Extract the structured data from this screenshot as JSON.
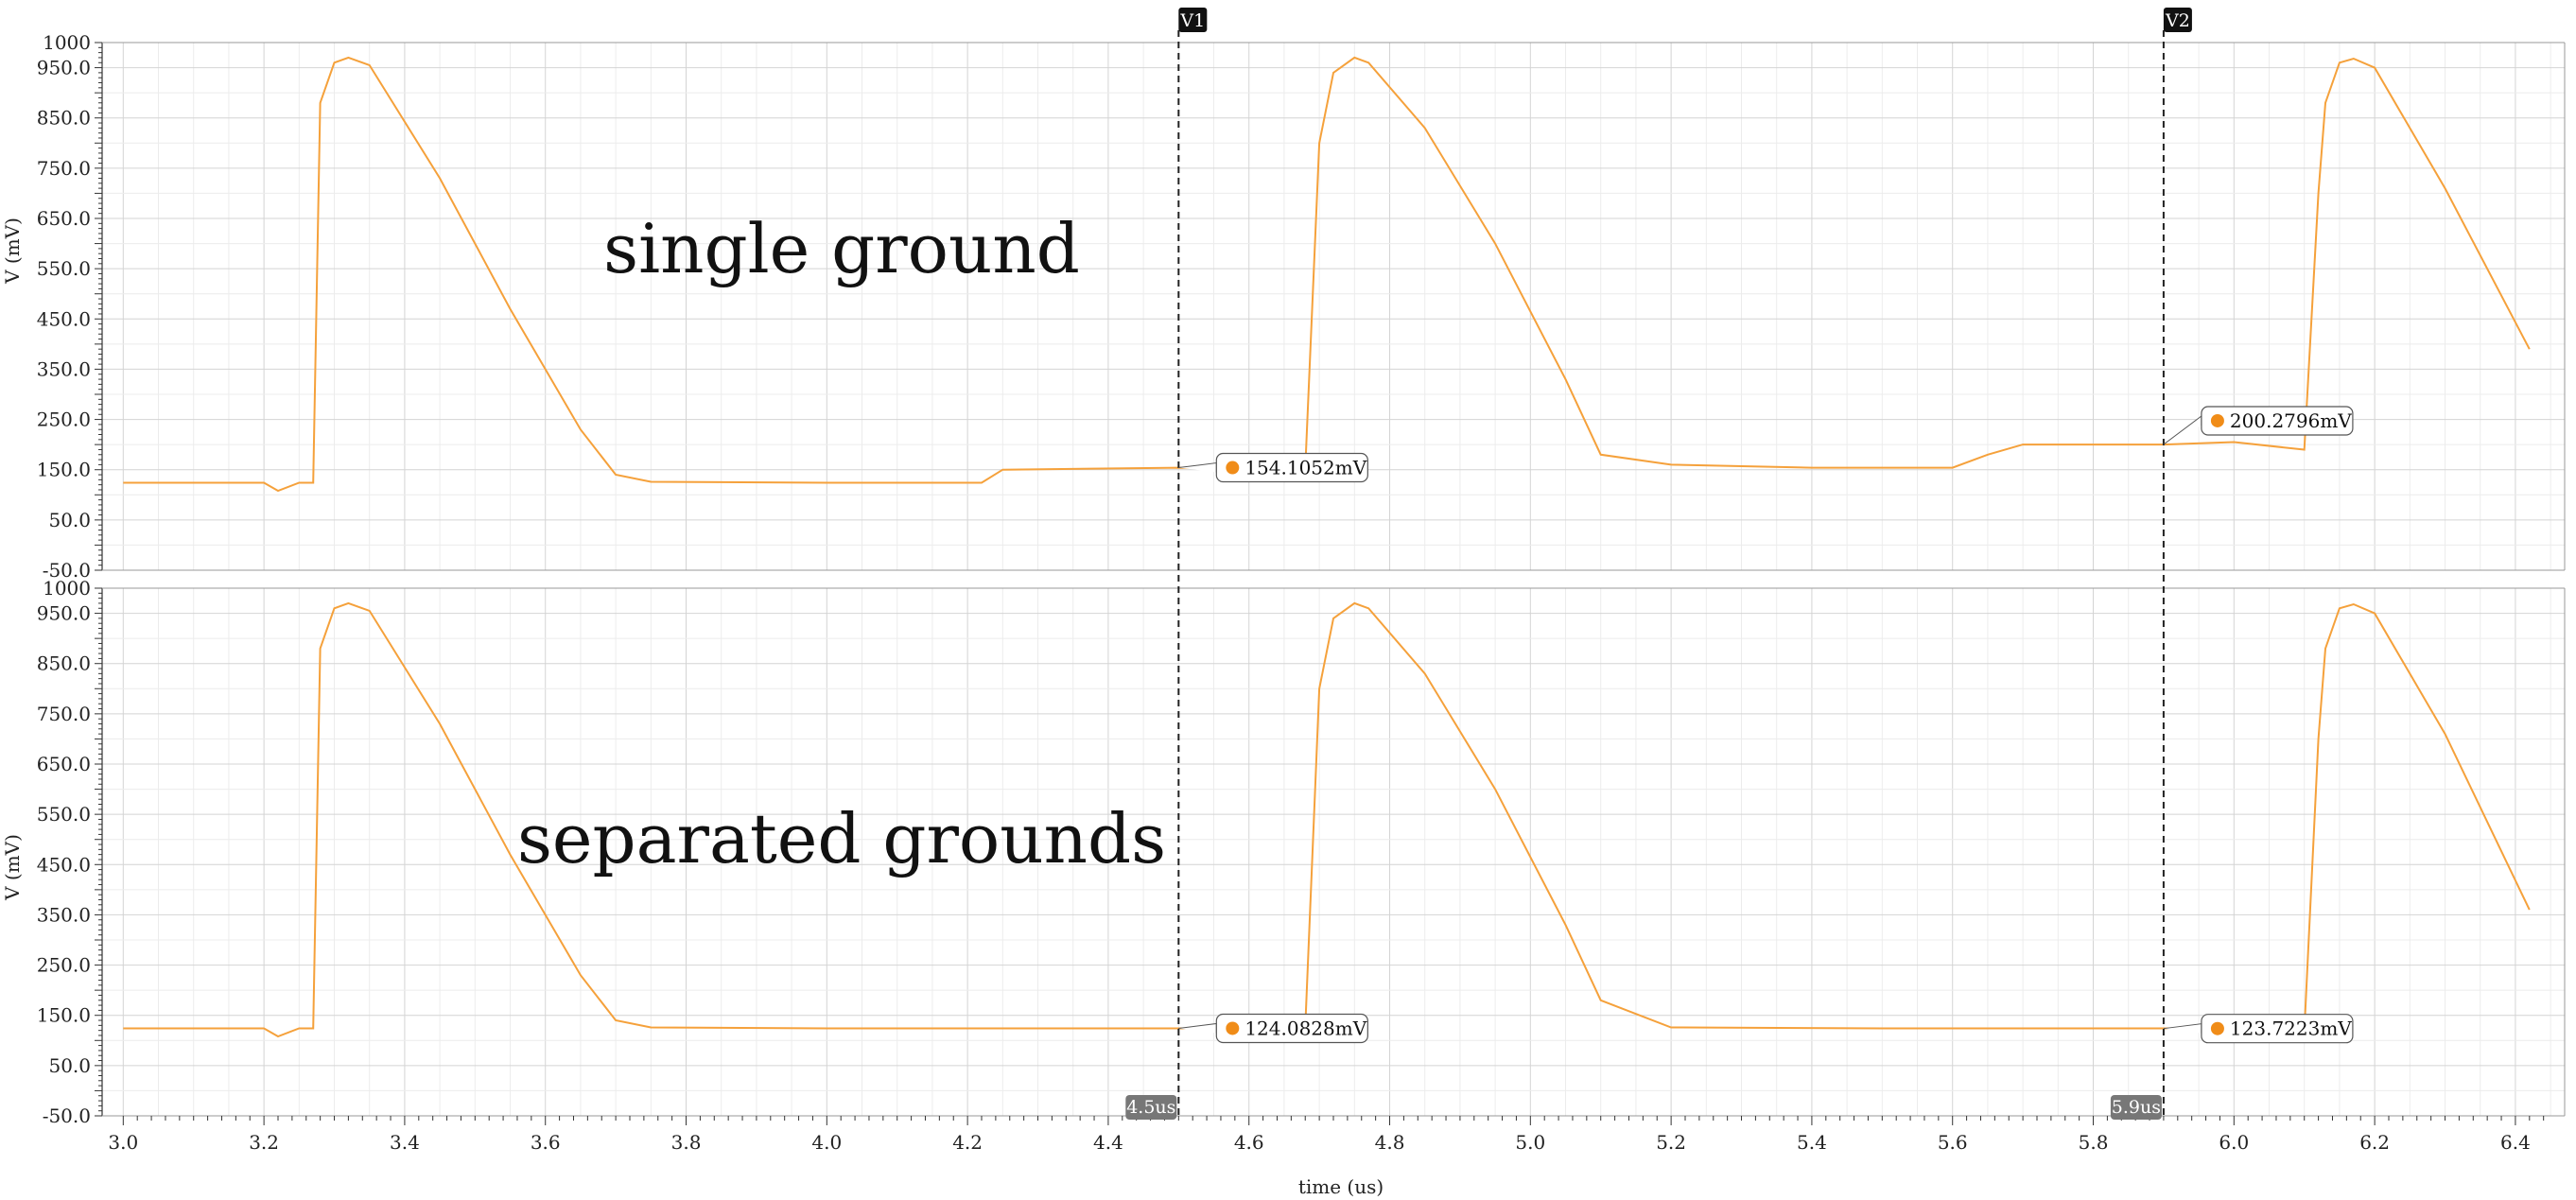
{
  "chart_data": [
    {
      "type": "line",
      "title": "",
      "annotation": "single ground",
      "xlabel": "",
      "ylabel": "V (mV)",
      "xlim": [
        2.97,
        6.47
      ],
      "ylim": [
        -50,
        1000
      ],
      "yticks": [
        "-50.0",
        "50.0",
        "150.0",
        "250.0",
        "350.0",
        "450.0",
        "550.0",
        "650.0",
        "750.0",
        "850.0",
        "950.0",
        "1000"
      ],
      "grid": true,
      "series": [
        {
          "color": "#f5a13b",
          "x": [
            3.0,
            3.2,
            3.22,
            3.25,
            3.27,
            3.28,
            3.3,
            3.32,
            3.35,
            3.45,
            3.55,
            3.65,
            3.7,
            3.75,
            4.0,
            4.22,
            4.25,
            4.5,
            4.6,
            4.68,
            4.7,
            4.72,
            4.75,
            4.77,
            4.85,
            4.95,
            5.05,
            5.1,
            5.2,
            5.4,
            5.6,
            5.65,
            5.7,
            5.9,
            6.0,
            6.1,
            6.12,
            6.13,
            6.15,
            6.17,
            6.2,
            6.3,
            6.42
          ],
          "y": [
            124,
            124,
            108,
            124,
            124,
            880,
            960,
            970,
            955,
            730,
            470,
            230,
            140,
            126,
            124,
            124,
            150,
            154,
            150,
            150,
            800,
            940,
            970,
            960,
            830,
            600,
            330,
            180,
            160,
            154,
            154,
            180,
            200,
            200,
            205,
            190,
            700,
            880,
            960,
            968,
            950,
            710,
            390
          ]
        }
      ],
      "cursors": [
        {
          "name": "V1",
          "x": 4.5,
          "value_label": "154.1052mV",
          "y": 154.1
        },
        {
          "name": "V2",
          "x": 5.9,
          "value_label": "200.2796mV",
          "y": 200.3
        }
      ]
    },
    {
      "type": "line",
      "title": "",
      "annotation": "separated grounds",
      "xlabel": "time (us)",
      "ylabel": "V (mV)",
      "xlim": [
        2.97,
        6.47
      ],
      "ylim": [
        -50,
        1000
      ],
      "yticks": [
        "-50.0",
        "50.0",
        "150.0",
        "250.0",
        "350.0",
        "450.0",
        "550.0",
        "650.0",
        "750.0",
        "850.0",
        "950.0",
        "1000"
      ],
      "xticks": [
        "3.0",
        "3.2",
        "3.4",
        "3.6",
        "3.8",
        "4.0",
        "4.2",
        "4.4",
        "4.6",
        "4.8",
        "5.0",
        "5.2",
        "5.4",
        "5.6",
        "5.8",
        "6.0",
        "6.2",
        "6.4"
      ],
      "grid": true,
      "series": [
        {
          "color": "#f5a13b",
          "x": [
            3.0,
            3.2,
            3.22,
            3.25,
            3.27,
            3.28,
            3.3,
            3.32,
            3.35,
            3.45,
            3.55,
            3.65,
            3.7,
            3.75,
            4.0,
            4.5,
            4.6,
            4.68,
            4.7,
            4.72,
            4.75,
            4.77,
            4.85,
            4.95,
            5.05,
            5.1,
            5.2,
            5.5,
            5.9,
            6.0,
            6.1,
            6.12,
            6.13,
            6.15,
            6.17,
            6.2,
            6.3,
            6.42
          ],
          "y": [
            124,
            124,
            108,
            124,
            124,
            880,
            960,
            970,
            955,
            730,
            470,
            230,
            140,
            126,
            124,
            124,
            124,
            124,
            800,
            940,
            970,
            960,
            830,
            600,
            330,
            180,
            126,
            124,
            124,
            124,
            118,
            700,
            880,
            960,
            968,
            950,
            710,
            360
          ]
        }
      ],
      "cursors": [
        {
          "name": "V1",
          "x": 4.5,
          "value_label": "124.0828mV",
          "y": 124.1,
          "axis_badge": "4.5us"
        },
        {
          "name": "V2",
          "x": 5.9,
          "value_label": "123.7223mV",
          "y": 123.7,
          "axis_badge": "5.9us"
        }
      ]
    }
  ]
}
